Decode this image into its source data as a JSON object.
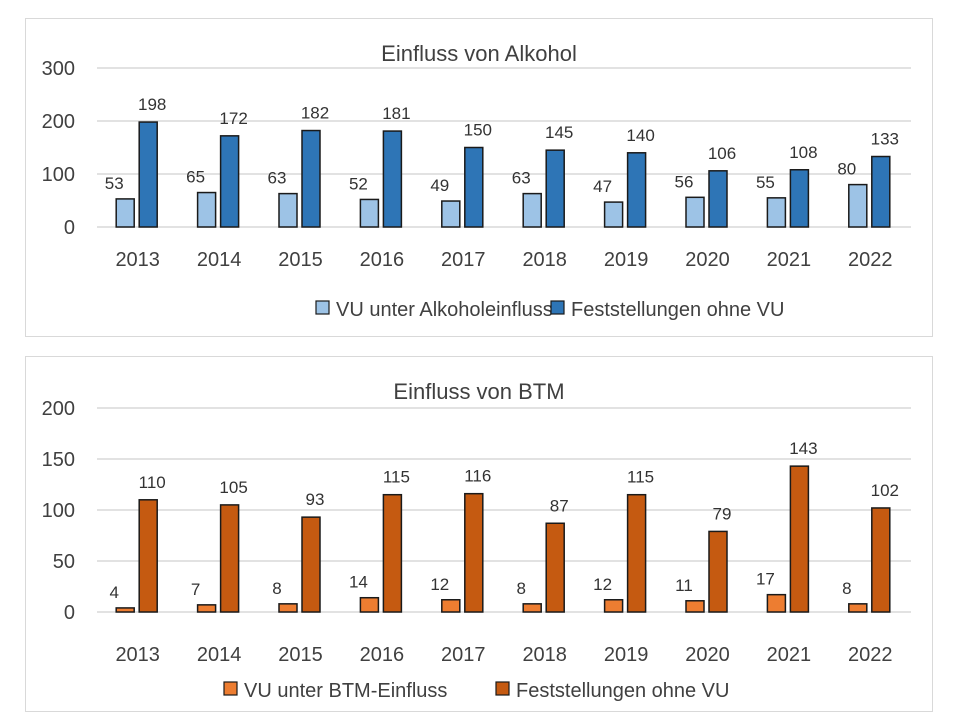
{
  "chart_data": [
    {
      "type": "bar",
      "title": "Einfluss von Alkohol",
      "xlabel": "",
      "ylabel": "",
      "ylim": [
        0,
        300
      ],
      "yticks": [
        0,
        100,
        200,
        300
      ],
      "grid": true,
      "legend_position": "bottom",
      "categories": [
        "2013",
        "2014",
        "2015",
        "2016",
        "2017",
        "2018",
        "2019",
        "2020",
        "2021",
        "2022"
      ],
      "series": [
        {
          "name": "VU unter Alkoholeinfluss",
          "color": "#9dc3e6",
          "values": [
            53,
            65,
            63,
            52,
            49,
            63,
            47,
            56,
            55,
            80
          ]
        },
        {
          "name": "Feststellungen ohne VU",
          "color": "#2e75b6",
          "values": [
            198,
            172,
            182,
            181,
            150,
            145,
            140,
            106,
            108,
            133
          ]
        }
      ]
    },
    {
      "type": "bar",
      "title": "Einfluss von BTM",
      "xlabel": "",
      "ylabel": "",
      "ylim": [
        0,
        200
      ],
      "yticks": [
        0,
        50,
        100,
        150,
        200
      ],
      "grid": true,
      "legend_position": "bottom",
      "categories": [
        "2013",
        "2014",
        "2015",
        "2016",
        "2017",
        "2018",
        "2019",
        "2020",
        "2021",
        "2022"
      ],
      "series": [
        {
          "name": "VU unter BTM-Einfluss",
          "color": "#ed7d31",
          "values": [
            4,
            7,
            8,
            14,
            12,
            8,
            12,
            11,
            17,
            8
          ]
        },
        {
          "name": "Feststellungen ohne VU",
          "color": "#c55a11",
          "values": [
            110,
            105,
            93,
            115,
            116,
            87,
            115,
            79,
            143,
            102
          ]
        }
      ]
    }
  ]
}
